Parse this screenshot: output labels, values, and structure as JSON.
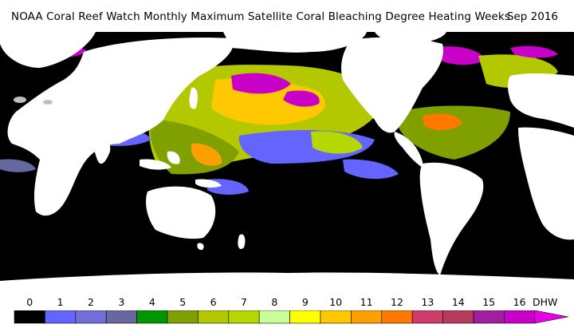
{
  "title": "NOAA Coral Reef Watch Monthly Maximum Satellite Coral Bleaching Degree Heating Weeks",
  "date": "Sep 2016",
  "legend": {
    "unit": "DHW",
    "ticks": [
      "0",
      "1",
      "2",
      "3",
      "4",
      "5",
      "6",
      "7",
      "8",
      "9",
      "10",
      "11",
      "12",
      "13",
      "14",
      "15",
      "16"
    ],
    "colors": [
      "#000000",
      "#6464ff",
      "#7070d8",
      "#6868a0",
      "#009600",
      "#80a000",
      "#b4c800",
      "#b4d800",
      "#c8ff96",
      "#ffff00",
      "#ffc800",
      "#ffa000",
      "#ff7800",
      "#d03c6c",
      "#b83c5a",
      "#a01ea0",
      "#c800c8",
      "#e800e8"
    ]
  },
  "map": {
    "background": "#000000",
    "land_color": "#ffffff"
  }
}
